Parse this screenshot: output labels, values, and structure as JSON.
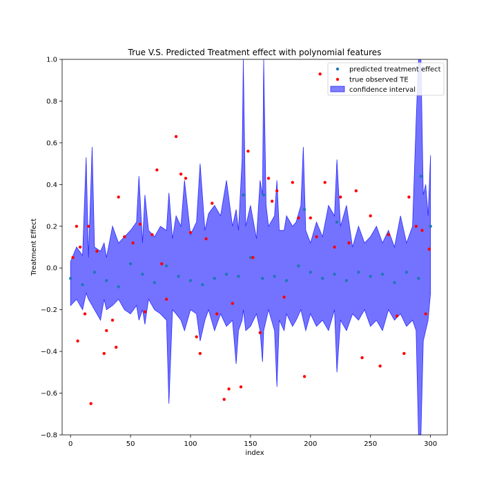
{
  "chart_data": {
    "type": "scatter",
    "title": "True V.S. Predicted Treatment effect with polynomial features",
    "xlabel": "index",
    "ylabel": "Treatment Effect",
    "xlim": [
      -7,
      314
    ],
    "ylim": [
      -0.8,
      1.0
    ],
    "x_ticks": [
      0,
      50,
      100,
      150,
      200,
      250,
      300
    ],
    "y_ticks": [
      -0.8,
      -0.6,
      -0.4,
      -0.2,
      0.0,
      0.2,
      0.4,
      0.6,
      0.8,
      1.0
    ],
    "y_tick_labels": [
      "−0.8",
      "−0.6",
      "−0.4",
      "−0.2",
      "0.0",
      "0.2",
      "0.4",
      "0.6",
      "0.8",
      "1.0"
    ],
    "grid": false,
    "legend_position": "top-right",
    "colors": {
      "predicted": "#1f77b4",
      "true": "#ff0000",
      "band_fill": "#0000ff",
      "band_edge": "#2a2aff"
    },
    "series": [
      {
        "name": "predicted treatment effect",
        "kind": "scatter",
        "x": [
          0,
          10,
          20,
          30,
          40,
          50,
          60,
          70,
          80,
          90,
          100,
          110,
          120,
          130,
          140,
          144,
          150,
          160,
          161,
          170,
          180,
          190,
          195,
          200,
          210,
          220,
          222,
          230,
          240,
          250,
          260,
          270,
          280,
          290,
          292,
          300
        ],
        "y": [
          -0.05,
          -0.08,
          -0.02,
          -0.06,
          -0.09,
          0.02,
          -0.03,
          -0.07,
          0.01,
          -0.04,
          -0.06,
          -0.08,
          -0.05,
          -0.03,
          -0.04,
          0.35,
          0.05,
          -0.05,
          0.35,
          -0.04,
          -0.06,
          0.01,
          0.28,
          -0.02,
          -0.05,
          -0.03,
          0.22,
          -0.06,
          -0.02,
          -0.04,
          -0.03,
          -0.07,
          -0.02,
          -0.05,
          0.44,
          0.2
        ]
      },
      {
        "name": "true observed TE",
        "kind": "scatter",
        "x": [
          2,
          5,
          6,
          8,
          12,
          15,
          17,
          22,
          28,
          30,
          35,
          38,
          40,
          45,
          52,
          58,
          62,
          68,
          72,
          76,
          80,
          88,
          92,
          96,
          100,
          105,
          108,
          113,
          118,
          122,
          128,
          132,
          135,
          142,
          148,
          152,
          158,
          165,
          168,
          172,
          178,
          185,
          190,
          195,
          200,
          205,
          208,
          212,
          220,
          225,
          232,
          238,
          243,
          250,
          258,
          265,
          272,
          278,
          282,
          288,
          293,
          296,
          299
        ],
        "y": [
          0.05,
          0.2,
          -0.35,
          0.1,
          -0.22,
          0.2,
          -0.65,
          0.08,
          -0.41,
          -0.3,
          -0.25,
          -0.38,
          0.34,
          0.15,
          0.12,
          0.21,
          -0.21,
          0.16,
          0.47,
          0.02,
          -0.15,
          0.63,
          0.45,
          0.43,
          0.17,
          -0.33,
          -0.41,
          0.14,
          0.31,
          -0.22,
          -0.63,
          -0.58,
          -0.17,
          -0.57,
          0.56,
          0.05,
          -0.31,
          0.43,
          0.32,
          0.37,
          -0.14,
          0.41,
          0.24,
          -0.52,
          0.24,
          0.15,
          0.93,
          0.41,
          0.1,
          0.34,
          0.12,
          0.37,
          -0.43,
          0.25,
          -0.47,
          0.16,
          -0.23,
          -0.41,
          0.34,
          0.2,
          0.18,
          -0.22,
          0.09
        ]
      },
      {
        "name": "confidence interval",
        "kind": "band",
        "x": [
          0,
          5,
          10,
          13,
          15,
          18,
          20,
          25,
          28,
          30,
          35,
          40,
          45,
          50,
          55,
          57,
          60,
          62,
          65,
          70,
          75,
          80,
          82,
          85,
          88,
          92,
          95,
          100,
          105,
          108,
          112,
          115,
          120,
          125,
          130,
          135,
          138,
          140,
          143,
          144,
          146,
          150,
          155,
          158,
          160,
          161,
          163,
          165,
          170,
          172,
          174,
          178,
          180,
          185,
          188,
          192,
          194,
          196,
          200,
          205,
          210,
          215,
          220,
          222,
          225,
          230,
          235,
          240,
          245,
          250,
          255,
          260,
          265,
          270,
          275,
          280,
          285,
          288,
          290,
          292,
          294,
          296,
          298,
          300
        ],
        "upper": [
          0.03,
          0.1,
          0.06,
          0.53,
          0.05,
          0.58,
          0.1,
          0.08,
          0.12,
          0.05,
          0.2,
          0.12,
          0.15,
          0.18,
          0.22,
          0.44,
          0.12,
          0.35,
          0.18,
          0.15,
          0.2,
          0.18,
          0.36,
          0.14,
          0.25,
          0.2,
          0.42,
          0.16,
          0.22,
          0.5,
          0.18,
          0.26,
          0.3,
          0.25,
          0.42,
          0.2,
          0.28,
          0.18,
          0.52,
          1.0,
          0.2,
          0.3,
          0.14,
          0.42,
          0.35,
          1.0,
          0.3,
          0.2,
          0.25,
          0.42,
          0.18,
          0.18,
          0.25,
          0.2,
          0.22,
          0.3,
          0.58,
          0.18,
          0.12,
          0.22,
          0.15,
          0.3,
          0.25,
          0.52,
          0.2,
          0.3,
          0.1,
          0.2,
          0.12,
          0.15,
          0.2,
          0.12,
          0.18,
          0.1,
          0.25,
          0.12,
          0.2,
          0.7,
          1.0,
          1.0,
          0.35,
          0.4,
          0.25,
          0.54
        ],
        "lower": [
          -0.18,
          -0.15,
          -0.2,
          -0.12,
          -0.15,
          -0.18,
          -0.2,
          -0.25,
          -0.15,
          -0.2,
          -0.18,
          -0.15,
          -0.2,
          -0.22,
          -0.18,
          -0.25,
          -0.2,
          -0.27,
          -0.15,
          -0.2,
          -0.22,
          -0.25,
          -0.65,
          -0.2,
          -0.22,
          -0.25,
          -0.3,
          -0.2,
          -0.22,
          -0.35,
          -0.25,
          -0.2,
          -0.3,
          -0.22,
          -0.28,
          -0.25,
          -0.46,
          -0.3,
          -0.25,
          -0.2,
          -0.3,
          -0.28,
          -0.22,
          -0.3,
          -0.45,
          -0.3,
          -0.25,
          -0.2,
          -0.3,
          -0.57,
          -0.25,
          -0.3,
          -0.22,
          -0.28,
          -0.25,
          -0.2,
          -0.25,
          -0.3,
          -0.22,
          -0.28,
          -0.25,
          -0.3,
          -0.2,
          -0.5,
          -0.25,
          -0.3,
          -0.22,
          -0.25,
          -0.2,
          -0.28,
          -0.25,
          -0.3,
          -0.2,
          -0.25,
          -0.22,
          -0.28,
          -0.25,
          -0.3,
          -0.8,
          -0.8,
          -0.35,
          -0.3,
          -0.25,
          -0.12
        ]
      }
    ]
  }
}
